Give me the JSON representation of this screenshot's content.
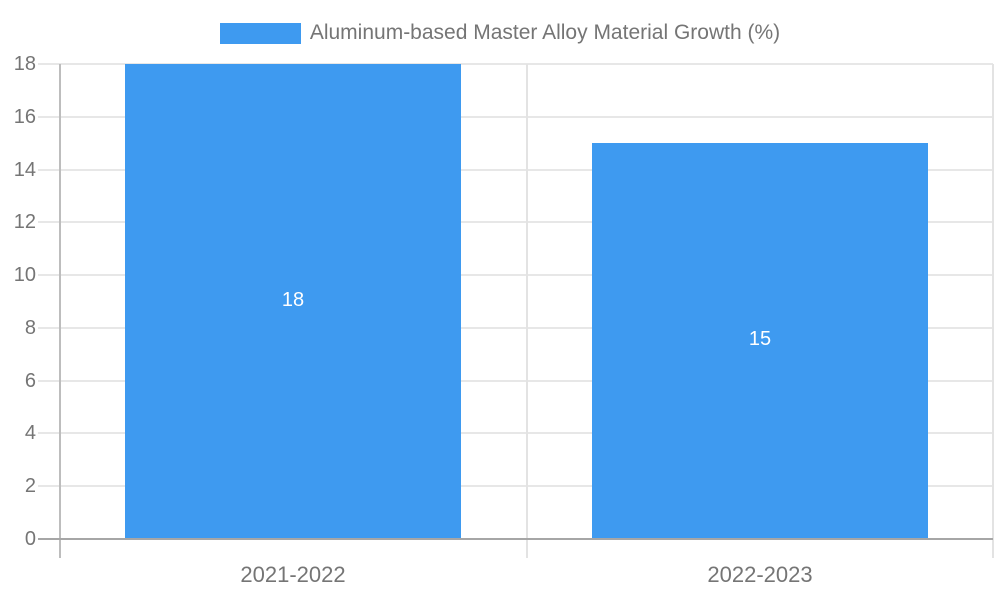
{
  "chart_data": {
    "type": "bar",
    "title": "Aluminum-based Master Alloy Material Growth (%)",
    "legend": "Aluminum-based Master Alloy Material Growth (%)",
    "legend_position": "top",
    "categories": [
      "2021-2022",
      "2022-2023"
    ],
    "series": [
      {
        "name": "Aluminum-based Master Alloy Material Growth (%)",
        "values": [
          18,
          15
        ]
      }
    ],
    "values": [
      18,
      15
    ],
    "bar_labels": [
      "18",
      "15"
    ],
    "xlabel": "",
    "ylabel": "",
    "ylim": [
      0,
      18
    ],
    "yticks": [
      0,
      2,
      4,
      6,
      8,
      10,
      12,
      14,
      16,
      18
    ],
    "grid": true,
    "colors": {
      "bar": "#3e9af0",
      "bar_label_text": "#ffffff",
      "axis_text": "#757575",
      "gridline": "#e7e7e7",
      "separator": "#e3e3e3",
      "y_axis_line": "#bdbdbd",
      "x_axis_line": "#a6a6a6"
    }
  }
}
